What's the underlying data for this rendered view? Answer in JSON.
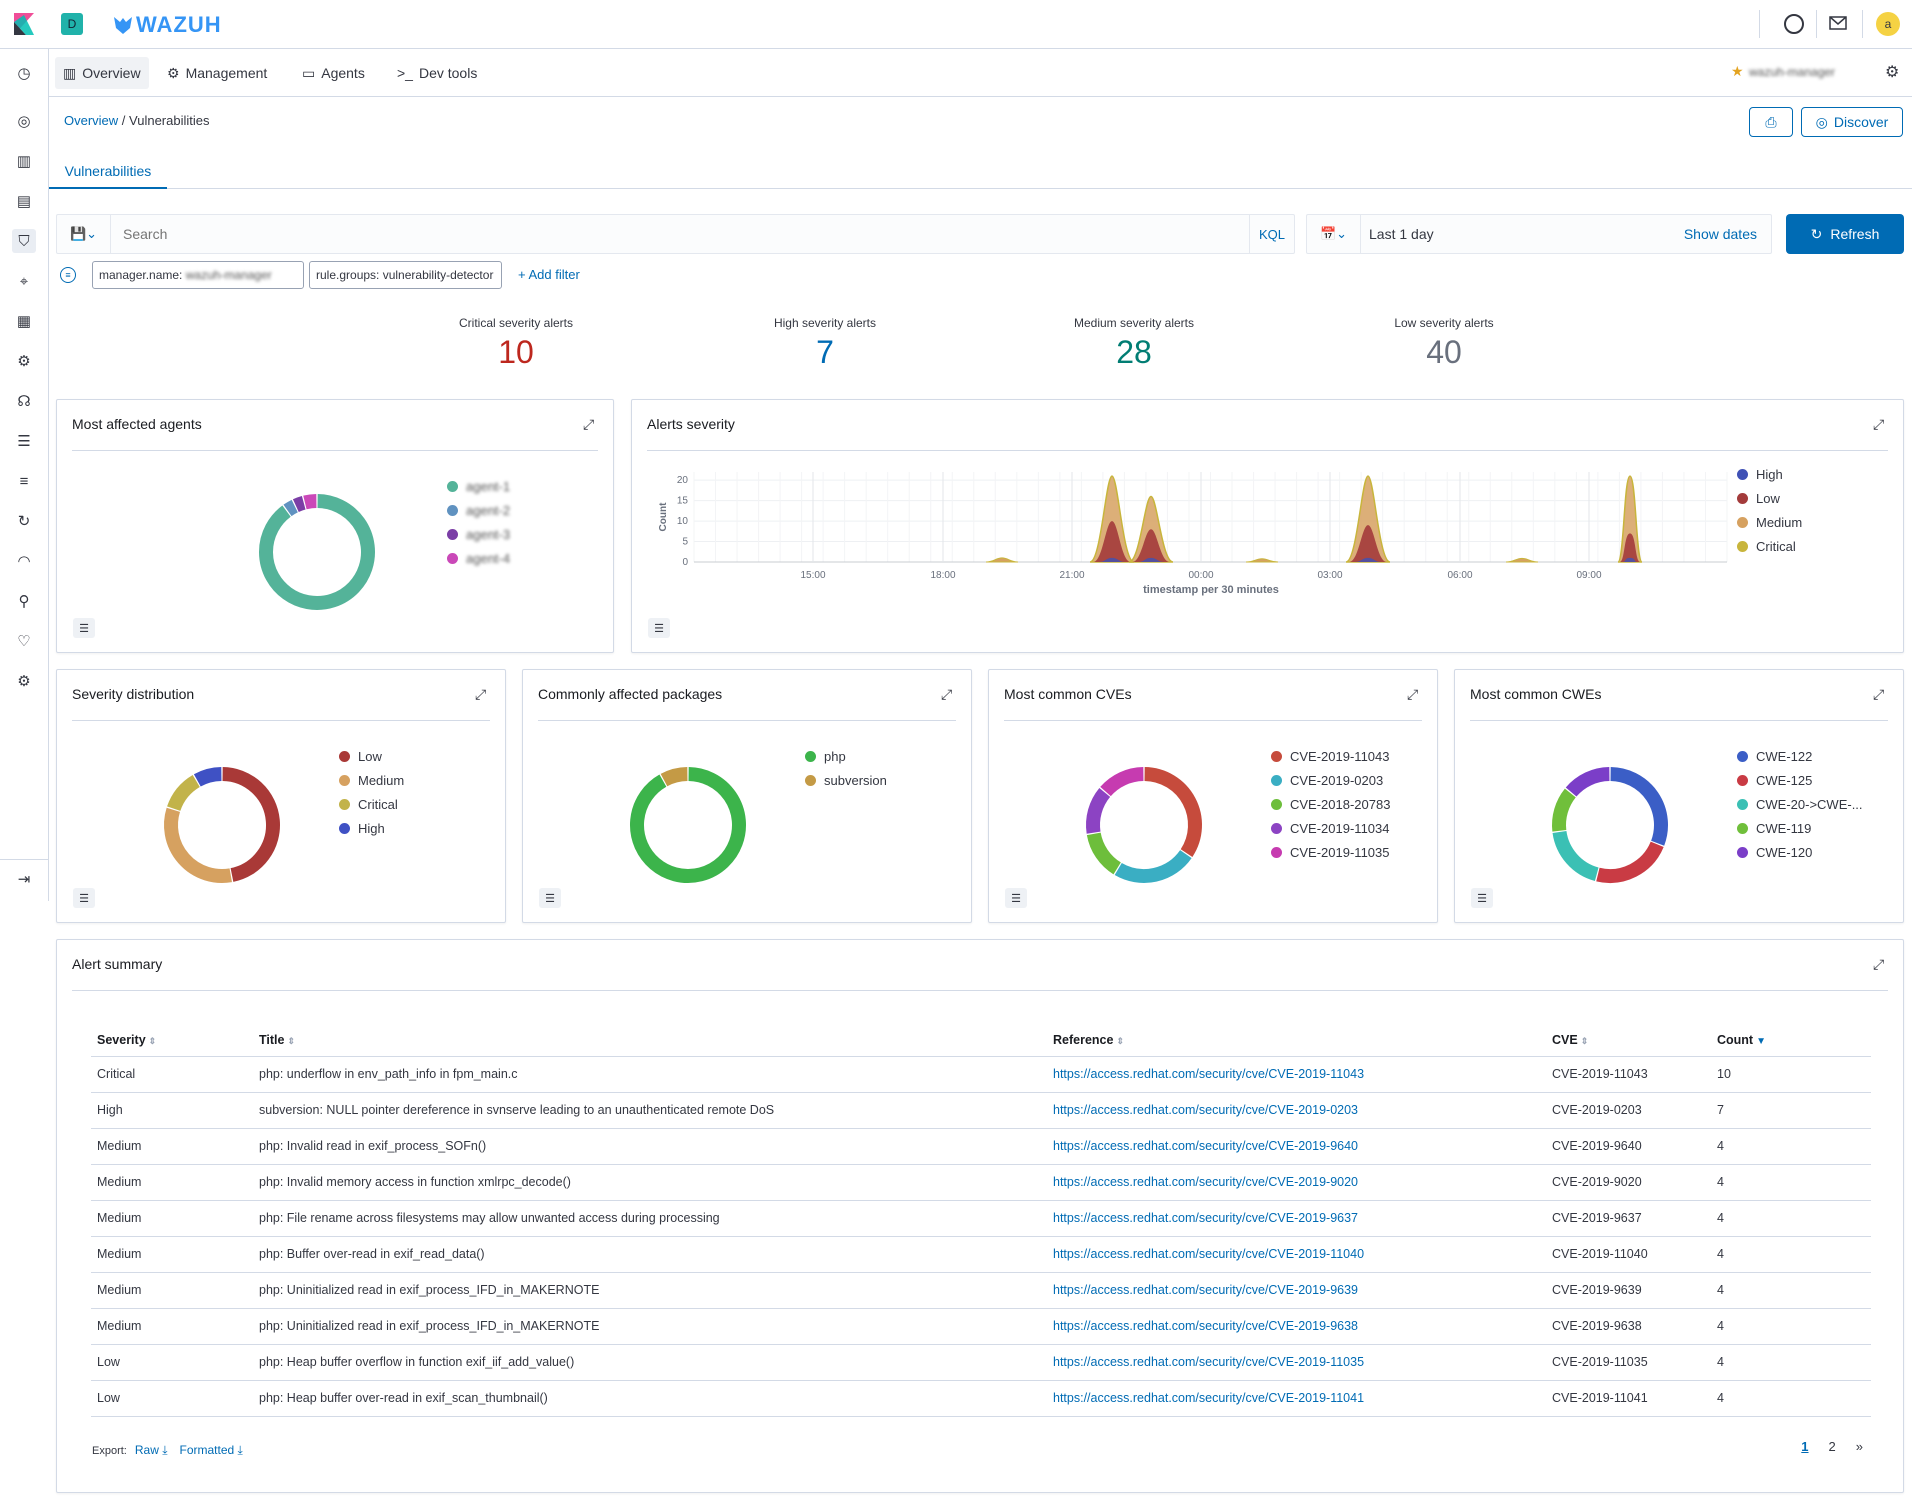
{
  "app": {
    "logo_text": "WAZUH",
    "space_badge": "D",
    "user_avatar": "a"
  },
  "menu": {
    "items": [
      "Overview",
      "Management",
      "Agents",
      "Dev tools"
    ]
  },
  "breadcrumb": {
    "root": "Overview",
    "separator": " / ",
    "current": "Vulnerabilities"
  },
  "buttons": {
    "discover": "Discover",
    "refresh": "Refresh",
    "show_dates": "Show dates",
    "add_filter": "+ Add filter"
  },
  "tabs": {
    "active": "Vulnerabilities"
  },
  "search": {
    "placeholder": "Search",
    "language": "KQL",
    "time_range": "Last 1 day"
  },
  "filters": [
    {
      "key": "manager.name:",
      "value": "wazuh-manager"
    },
    {
      "key": "rule.groups:",
      "value": "vulnerability-detector"
    }
  ],
  "stats": [
    {
      "label": "Critical severity alerts",
      "value": "10",
      "color": "#bd271e"
    },
    {
      "label": "High severity alerts",
      "value": "7",
      "color": "#006bb4"
    },
    {
      "label": "Medium severity alerts",
      "value": "28",
      "color": "#017d73"
    },
    {
      "label": "Low severity alerts",
      "value": "40",
      "color": "#69707d"
    }
  ],
  "panels": {
    "agents": "Most affected agents",
    "alerts_severity": "Alerts severity",
    "severity_distribution": "Severity distribution",
    "packages": "Commonly affected packages",
    "cves": "Most common CVEs",
    "cwes": "Most common CWEs",
    "summary": "Alert summary"
  },
  "chart_data": [
    {
      "type": "pie",
      "title": "Most affected agents",
      "labels": [
        "agent-1",
        "agent-2",
        "agent-3",
        "agent-4"
      ],
      "values": [
        90,
        3,
        3,
        4
      ],
      "colors": [
        "#54b399",
        "#6092c0",
        "#7b3ea6",
        "#ca48b8"
      ]
    },
    {
      "type": "area",
      "title": "Alerts severity",
      "xlabel": "timestamp per 30 minutes",
      "ylabel": "Count",
      "ylim": [
        0,
        22
      ],
      "yticks": [
        0,
        5,
        10,
        15,
        20
      ],
      "xtick_labels": [
        "15:00",
        "18:00",
        "21:00",
        "00:00",
        "03:00",
        "06:00",
        "09:00"
      ],
      "series": [
        {
          "name": "High",
          "color": "#3f51b5"
        },
        {
          "name": "Low",
          "color": "#a33b3b"
        },
        {
          "name": "Medium",
          "color": "#d6a160"
        },
        {
          "name": "Critical",
          "color": "#c8b53c"
        }
      ]
    },
    {
      "type": "pie",
      "title": "Severity distribution",
      "labels": [
        "Low",
        "Medium",
        "Critical",
        "High"
      ],
      "values": [
        40,
        28,
        10,
        7
      ],
      "colors": [
        "#a93937",
        "#d6a160",
        "#c2b34a",
        "#3f51c4"
      ]
    },
    {
      "type": "pie",
      "title": "Commonly affected packages",
      "labels": [
        "php",
        "subversion"
      ],
      "values": [
        92,
        8
      ],
      "colors": [
        "#3cb44b",
        "#c49a45"
      ]
    },
    {
      "type": "pie",
      "title": "Most common CVEs",
      "labels": [
        "CVE-2019-11043",
        "CVE-2019-0203",
        "CVE-2018-20783",
        "CVE-2019-11034",
        "CVE-2019-11035"
      ],
      "values": [
        10,
        7,
        4,
        4,
        4
      ],
      "colors": [
        "#c64b3c",
        "#3aaec3",
        "#6dbe3b",
        "#8c43c3",
        "#c63bb0"
      ]
    },
    {
      "type": "pie",
      "title": "Most common CWEs",
      "labels": [
        "CWE-122",
        "CWE-125",
        "CWE-20->CWE-...",
        "CWE-119",
        "CWE-120"
      ],
      "values": [
        31,
        23,
        19,
        13,
        14
      ],
      "colors": [
        "#3b5ec6",
        "#c93b44",
        "#3bc0b4",
        "#70bf3b",
        "#7b3ec8"
      ]
    }
  ],
  "table": {
    "headers": [
      "Severity",
      "Title",
      "Reference",
      "CVE",
      "Count"
    ],
    "rows": [
      [
        "Critical",
        "php: underflow in env_path_info in fpm_main.c",
        "https://access.redhat.com/security/cve/CVE-2019-11043",
        "CVE-2019-11043",
        "10"
      ],
      [
        "High",
        "subversion: NULL pointer dereference in svnserve leading to an unauthenticated remote DoS",
        "https://access.redhat.com/security/cve/CVE-2019-0203",
        "CVE-2019-0203",
        "7"
      ],
      [
        "Medium",
        "php: Invalid read in exif_process_SOFn()",
        "https://access.redhat.com/security/cve/CVE-2019-9640",
        "CVE-2019-9640",
        "4"
      ],
      [
        "Medium",
        "php: Invalid memory access in function xmlrpc_decode()",
        "https://access.redhat.com/security/cve/CVE-2019-9020",
        "CVE-2019-9020",
        "4"
      ],
      [
        "Medium",
        "php: File rename across filesystems may allow unwanted access during processing",
        "https://access.redhat.com/security/cve/CVE-2019-9637",
        "CVE-2019-9637",
        "4"
      ],
      [
        "Medium",
        "php: Buffer over-read in exif_read_data()",
        "https://access.redhat.com/security/cve/CVE-2019-11040",
        "CVE-2019-11040",
        "4"
      ],
      [
        "Medium",
        "php: Uninitialized read in exif_process_IFD_in_MAKERNOTE",
        "https://access.redhat.com/security/cve/CVE-2019-9639",
        "CVE-2019-9639",
        "4"
      ],
      [
        "Medium",
        "php: Uninitialized read in exif_process_IFD_in_MAKERNOTE",
        "https://access.redhat.com/security/cve/CVE-2019-9638",
        "CVE-2019-9638",
        "4"
      ],
      [
        "Low",
        "php: Heap buffer overflow in function exif_iif_add_value()",
        "https://access.redhat.com/security/cve/CVE-2019-11035",
        "CVE-2019-11035",
        "4"
      ],
      [
        "Low",
        "php: Heap buffer over-read in exif_scan_thumbnail()",
        "https://access.redhat.com/security/cve/CVE-2019-11041",
        "CVE-2019-11041",
        "4"
      ]
    ]
  },
  "export": {
    "label": "Export:",
    "raw": "Raw",
    "formatted": "Formatted"
  },
  "pagination": {
    "pages": [
      "1",
      "2"
    ],
    "next": "»"
  }
}
